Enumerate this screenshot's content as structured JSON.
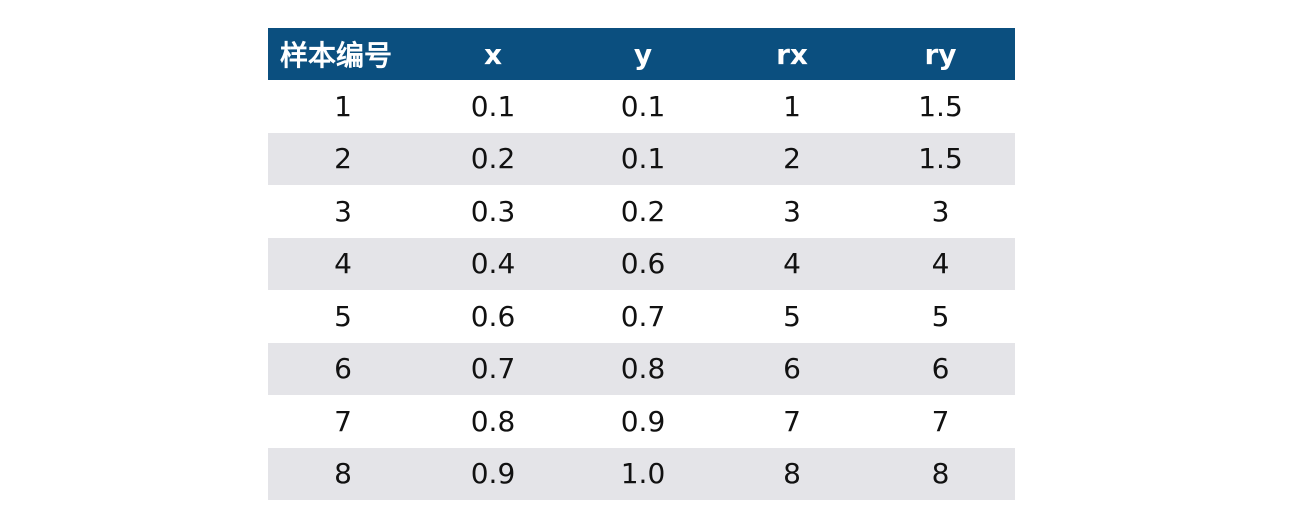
{
  "table": {
    "headers": [
      "样本编号",
      "x",
      "y",
      "rx",
      "ry"
    ],
    "rows": [
      [
        "1",
        "0.1",
        "0.1",
        "1",
        "1.5"
      ],
      [
        "2",
        "0.2",
        "0.1",
        "2",
        "1.5"
      ],
      [
        "3",
        "0.3",
        "0.2",
        "3",
        "3"
      ],
      [
        "4",
        "0.4",
        "0.6",
        "4",
        "4"
      ],
      [
        "5",
        "0.6",
        "0.7",
        "5",
        "5"
      ],
      [
        "6",
        "0.7",
        "0.8",
        "6",
        "6"
      ],
      [
        "7",
        "0.8",
        "0.9",
        "7",
        "7"
      ],
      [
        "8",
        "0.9",
        "1.0",
        "8",
        "8"
      ]
    ]
  },
  "colors": {
    "header_bg": "#0b4f7f",
    "stripe_bg": "#e4e4e8",
    "header_text": "#ffffff",
    "cell_text": "#111111"
  }
}
